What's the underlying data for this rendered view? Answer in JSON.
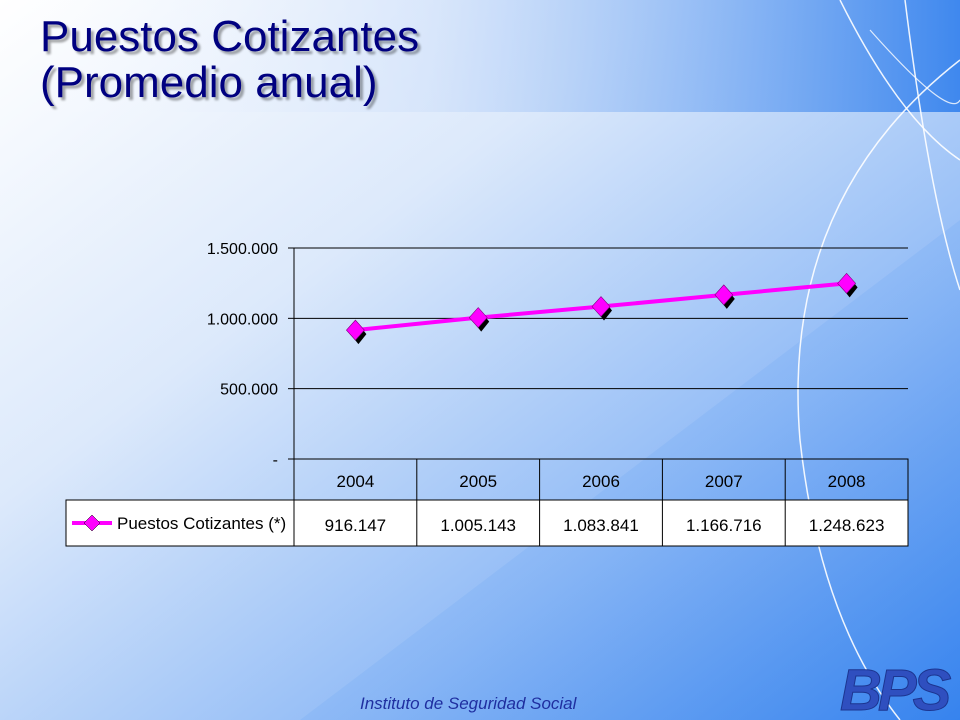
{
  "slide": {
    "title_line1": "Puestos Cotizantes",
    "title_line2": "(Promedio anual)",
    "footer": "Instituto de Seguridad Social",
    "logo_text": "BPS"
  },
  "colors": {
    "title": "#000080",
    "series": "#ff00ff",
    "footer": "#1f2fa0",
    "logo": "#2f4fbf"
  },
  "chart_data": {
    "type": "line",
    "title": "",
    "xlabel": "",
    "ylabel": "",
    "categories": [
      "2004",
      "2005",
      "2006",
      "2007",
      "2008"
    ],
    "ylim": [
      0,
      1500000
    ],
    "yticks": [
      0,
      500000,
      1000000,
      1500000
    ],
    "ytick_labels": [
      "-",
      "500.000",
      "1.000.000",
      "1.500.000"
    ],
    "grid": true,
    "legend": "data-table",
    "series": [
      {
        "name": "Puestos Cotizantes (*)",
        "values": [
          916147,
          1005143,
          1083841,
          1166716,
          1248623
        ],
        "value_labels": [
          "916.147",
          "1.005.143",
          "1.083.841",
          "1.166.716",
          "1.248.623"
        ]
      }
    ]
  }
}
